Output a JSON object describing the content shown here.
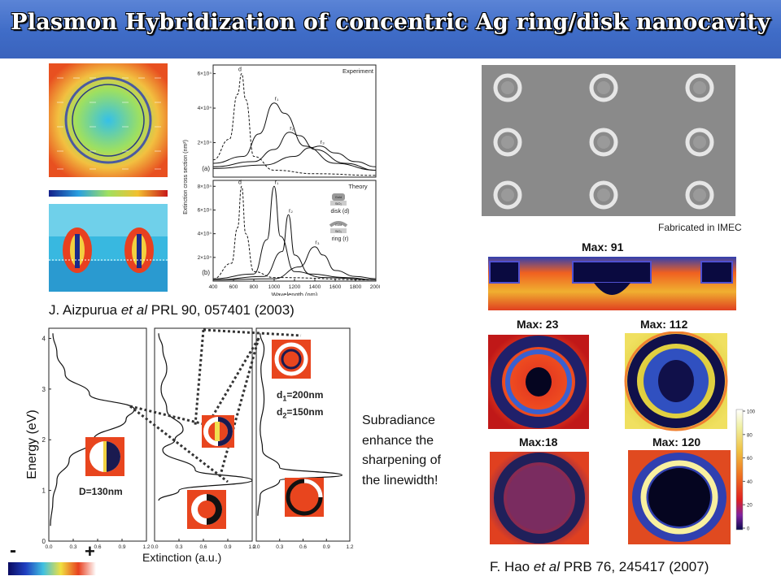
{
  "slide": {
    "title": "Plasmon Hybridization of concentric Ag ring/disk nanocavity",
    "citation_left": {
      "authors": "J. Aizpurua",
      "etal": "et al",
      "journal": "PRL 90, 057401 (2003)"
    },
    "citation_right": {
      "authors": "F. Hao",
      "etal": "et al",
      "journal": "PRB 76, 245417 (2007)"
    },
    "fabricated_note": "Fabricated in IMEC",
    "subradiance_lines": [
      "Subradiance",
      "enhance the",
      "sharpening of",
      "the linewidth!"
    ],
    "energy_axis_label": "Energy (eV)",
    "extinction_axis_label": "Extinction (a.u.)",
    "scale_minus": "-",
    "scale_plus": "+",
    "disk_label": "D=130nm",
    "ring_label_d1": "d",
    "ring_label_d1_sub": "1",
    "ring_label_d1_val": "=200nm",
    "ring_label_d2": "d",
    "ring_label_d2_sub": "2",
    "ring_label_d2_val": "=150nm",
    "max_labels": {
      "top": "Max: 91",
      "left1": "Max: 23",
      "right1": "Max: 112",
      "left2": "Max:18",
      "right2": "Max: 120"
    },
    "colorbar_ticks": [
      "100",
      "80",
      "60",
      "40",
      "20",
      "0"
    ]
  },
  "chart_data": [
    {
      "type": "line",
      "title": "Experiment",
      "panel": "(a)",
      "xlabel": "Wavelength (nm)",
      "ylabel": "Extinction cross section (nm²)",
      "xlim": [
        400,
        2000
      ],
      "ylim": [
        0,
        6.5
      ],
      "yunit_note": "x10^4",
      "yticks": [
        "2×10⁴",
        "4×10⁴",
        "6×10⁴"
      ],
      "peak_labels": [
        "d",
        "r₁",
        "r₂",
        "r₃"
      ],
      "series": [
        {
          "name": "d",
          "x": [
            400,
            560,
            640,
            680,
            720,
            800,
            1000,
            1400,
            2000
          ],
          "values": [
            1.0,
            2.2,
            4.8,
            6.0,
            4.5,
            1.2,
            0.4,
            0.2,
            0.1
          ]
        },
        {
          "name": "r1",
          "x": [
            400,
            700,
            850,
            1000,
            1100,
            1300,
            1600,
            2000
          ],
          "values": [
            0.8,
            1.2,
            2.5,
            4.3,
            3.7,
            1.8,
            0.8,
            0.4
          ]
        },
        {
          "name": "r2",
          "x": [
            400,
            800,
            1000,
            1150,
            1250,
            1400,
            1700,
            2000
          ],
          "values": [
            0.6,
            0.9,
            1.6,
            2.6,
            2.4,
            1.6,
            0.8,
            0.4
          ]
        },
        {
          "name": "r3",
          "x": [
            400,
            900,
            1200,
            1350,
            1450,
            1600,
            1800,
            2000
          ],
          "values": [
            0.5,
            0.7,
            1.2,
            1.7,
            1.8,
            1.4,
            0.9,
            0.6
          ]
        }
      ]
    },
    {
      "type": "line",
      "title": "Theory",
      "panel": "(b)",
      "xlabel": "Wavelength (nm)",
      "xlim": [
        400,
        2000
      ],
      "ylim": [
        0,
        8.5
      ],
      "xticks": [
        400,
        600,
        800,
        1000,
        1200,
        1400,
        1600,
        1800,
        2000
      ],
      "yticks": [
        "2×10⁴",
        "4×10⁴",
        "6×10⁴",
        "8×10⁴"
      ],
      "peak_labels": [
        "d",
        "r₁",
        "r₂",
        "r₃"
      ],
      "legend_items": [
        "Gold",
        "SiO₂",
        "disk (d)",
        "Gold",
        "SiO₂",
        "ring (r)"
      ],
      "series": [
        {
          "name": "d",
          "x": [
            400,
            580,
            640,
            680,
            720,
            800,
            1000,
            2000
          ],
          "values": [
            0.2,
            1.5,
            4.5,
            8.0,
            4.0,
            0.8,
            0.3,
            0.1
          ]
        },
        {
          "name": "r1",
          "x": [
            400,
            800,
            930,
            1000,
            1060,
            1200,
            1500,
            2000
          ],
          "values": [
            0.2,
            0.6,
            3.5,
            8.0,
            3.8,
            0.8,
            0.3,
            0.1
          ]
        },
        {
          "name": "r2",
          "x": [
            400,
            900,
            1080,
            1140,
            1200,
            1350,
            1700,
            2000
          ],
          "values": [
            0.1,
            0.4,
            2.5,
            5.6,
            2.2,
            0.6,
            0.3,
            0.1
          ]
        },
        {
          "name": "r3",
          "x": [
            400,
            1000,
            1250,
            1400,
            1480,
            1600,
            1800,
            2000
          ],
          "values": [
            0.1,
            0.2,
            1.2,
            2.9,
            2.2,
            0.9,
            0.4,
            0.2
          ]
        }
      ]
    },
    {
      "type": "line",
      "title": "",
      "xlabel": "Extinction (a.u.)",
      "ylabel": "Energy (eV)",
      "ylim": [
        0,
        4.2
      ],
      "xticks": [
        "0.0",
        "0.3",
        "0.6",
        "0.9",
        "1.2"
      ],
      "yticks": [
        "0",
        "1",
        "2",
        "3",
        "4"
      ],
      "panels": [
        {
          "name": "disk",
          "energy": [
            0.3,
            0.8,
            1.2,
            1.6,
            2.0,
            2.4,
            2.6,
            2.9,
            3.3,
            3.7,
            4.1
          ],
          "extinction": [
            0.02,
            0.05,
            0.1,
            0.25,
            0.55,
            0.95,
            1.05,
            0.5,
            0.2,
            0.1,
            0.05
          ]
        },
        {
          "name": "ring",
          "energy": [
            0.8,
            1.0,
            1.2,
            1.4,
            1.8,
            2.0,
            2.2,
            2.6,
            3.0,
            3.4,
            3.8,
            4.1
          ],
          "extinction": [
            0.05,
            0.3,
            1.2,
            0.5,
            0.1,
            0.25,
            0.35,
            0.15,
            0.08,
            0.15,
            0.1,
            0.05
          ]
        },
        {
          "name": "ring-disk",
          "energy": [
            0.5,
            0.9,
            1.2,
            1.3,
            1.45,
            1.8,
            2.2,
            2.8,
            3.4,
            3.8,
            4.1
          ],
          "extinction": [
            0.02,
            0.05,
            0.3,
            1.1,
            0.3,
            0.08,
            0.05,
            0.1,
            0.06,
            0.1,
            0.05
          ]
        }
      ]
    }
  ],
  "colors": {
    "banner": "#3f6cc7",
    "field_red": "#e0351e",
    "field_blue": "#1c2a8a",
    "field_yellow": "#f0e040",
    "sem_gray": "#8a8a8a"
  }
}
